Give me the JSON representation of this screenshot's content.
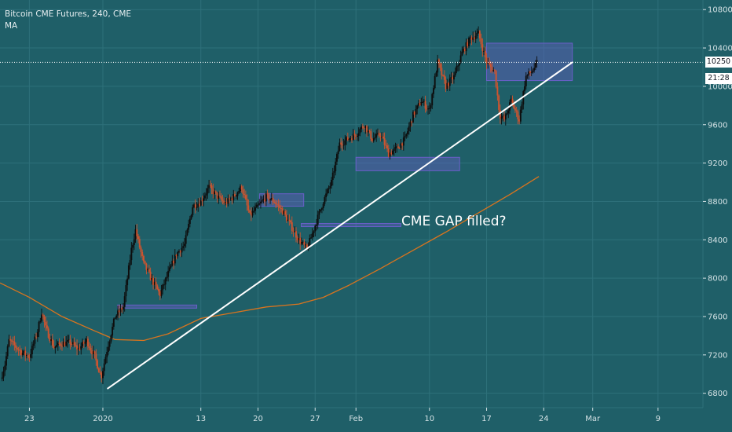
{
  "legend": {
    "symbol_line": "Bitcoin CME Futures, 240, CME",
    "indicator": "MA"
  },
  "annotation": "CME GAP filled?",
  "price_badge": "10250",
  "time_badge": "21:28",
  "colors": {
    "background": "#1f5f68",
    "grid": "#2e707a",
    "candle_up": "#0d0d0d",
    "candle_down": "#d0542e",
    "ma": "#d9741e",
    "trendline": "#ffffff",
    "gap_box": "#6a5fc8",
    "axis_text": "#d4e2e5"
  },
  "chart_data": {
    "type": "candlestick",
    "title": "Bitcoin CME Futures, 240, CME",
    "ylim": [
      6650,
      10900
    ],
    "y_ticks": [
      6800,
      7200,
      7600,
      8000,
      8400,
      8800,
      9200,
      9600,
      10000,
      10400,
      10800
    ],
    "x_ticks": [
      {
        "label": "23",
        "day": 0
      },
      {
        "label": "2020",
        "day": 9
      },
      {
        "label": "13",
        "day": 21
      },
      {
        "label": "20",
        "day": 28
      },
      {
        "label": "27",
        "day": 35
      },
      {
        "label": "Feb",
        "day": 40
      },
      {
        "label": "10",
        "day": 49
      },
      {
        "label": "17",
        "day": 56
      },
      {
        "label": "24",
        "day": 63
      },
      {
        "label": "Mar",
        "day": 69
      },
      {
        "label": "9",
        "day": 77
      }
    ],
    "xlim_days": [
      -3.6,
      82.5
    ],
    "price_anchors": [
      [
        -3.5,
        6950
      ],
      [
        -3,
        7100
      ],
      [
        -2.5,
        7350
      ],
      [
        -1,
        7230
      ],
      [
        0,
        7180
      ],
      [
        1,
        7450
      ],
      [
        1.5,
        7650
      ],
      [
        2,
        7480
      ],
      [
        3,
        7280
      ],
      [
        4,
        7320
      ],
      [
        5,
        7330
      ],
      [
        6,
        7260
      ],
      [
        7,
        7350
      ],
      [
        8,
        7180
      ],
      [
        8.8,
        6970
      ],
      [
        9.5,
        7250
      ],
      [
        10.5,
        7600
      ],
      [
        11.5,
        7700
      ],
      [
        12.5,
        8300
      ],
      [
        13,
        8500
      ],
      [
        14,
        8150
      ],
      [
        15,
        7980
      ],
      [
        16,
        7830
      ],
      [
        17,
        8050
      ],
      [
        18,
        8250
      ],
      [
        19,
        8350
      ],
      [
        20,
        8750
      ],
      [
        21,
        8800
      ],
      [
        22,
        8950
      ],
      [
        23,
        8850
      ],
      [
        24,
        8780
      ],
      [
        25,
        8850
      ],
      [
        26,
        8950
      ],
      [
        27,
        8650
      ],
      [
        28,
        8750
      ],
      [
        29,
        8850
      ],
      [
        30,
        8800
      ],
      [
        31,
        8700
      ],
      [
        32,
        8550
      ],
      [
        33,
        8400
      ],
      [
        34,
        8300
      ],
      [
        35,
        8550
      ],
      [
        36,
        8800
      ],
      [
        37,
        9000
      ],
      [
        38,
        9400
      ],
      [
        39,
        9450
      ],
      [
        40,
        9500
      ],
      [
        41,
        9600
      ],
      [
        42,
        9450
      ],
      [
        43,
        9500
      ],
      [
        44,
        9300
      ],
      [
        45,
        9350
      ],
      [
        46,
        9450
      ],
      [
        47,
        9700
      ],
      [
        48,
        9850
      ],
      [
        49,
        9750
      ],
      [
        50,
        10250
      ],
      [
        51,
        10000
      ],
      [
        52,
        10100
      ],
      [
        53,
        10350
      ],
      [
        54,
        10500
      ],
      [
        55,
        10550
      ],
      [
        56,
        10250
      ],
      [
        57,
        10150
      ],
      [
        57.6,
        9700
      ],
      [
        58.2,
        9650
      ],
      [
        59,
        9850
      ],
      [
        60,
        9650
      ],
      [
        60.8,
        10100
      ],
      [
        61.5,
        10150
      ],
      [
        62.2,
        10250
      ]
    ],
    "ma_series": [
      [
        -3.6,
        7950
      ],
      [
        0,
        7800
      ],
      [
        4,
        7600
      ],
      [
        8,
        7450
      ],
      [
        10.5,
        7360
      ],
      [
        14,
        7350
      ],
      [
        17,
        7420
      ],
      [
        21,
        7580
      ],
      [
        25,
        7640
      ],
      [
        29,
        7700
      ],
      [
        33,
        7730
      ],
      [
        36,
        7800
      ],
      [
        39,
        7920
      ],
      [
        43,
        8100
      ],
      [
        47,
        8290
      ],
      [
        51,
        8480
      ],
      [
        55,
        8680
      ],
      [
        59,
        8880
      ],
      [
        62.4,
        9060
      ]
    ],
    "trendline": [
      [
        9.6,
        6850
      ],
      [
        66.5,
        10250
      ]
    ],
    "gap_boxes": [
      {
        "d1": 10.8,
        "d2": 20.5,
        "p_low": 7690,
        "p_high": 7720
      },
      {
        "d1": 28.2,
        "d2": 33.6,
        "p_low": 8750,
        "p_high": 8880
      },
      {
        "d1": 33.3,
        "d2": 45.5,
        "p_low": 8545,
        "p_high": 8570
      },
      {
        "d1": 40.0,
        "d2": 52.7,
        "p_low": 9120,
        "p_high": 9260
      },
      {
        "d1": 56.0,
        "d2": 66.5,
        "p_low": 10060,
        "p_high": 10450
      }
    ],
    "last_price": 10250
  }
}
